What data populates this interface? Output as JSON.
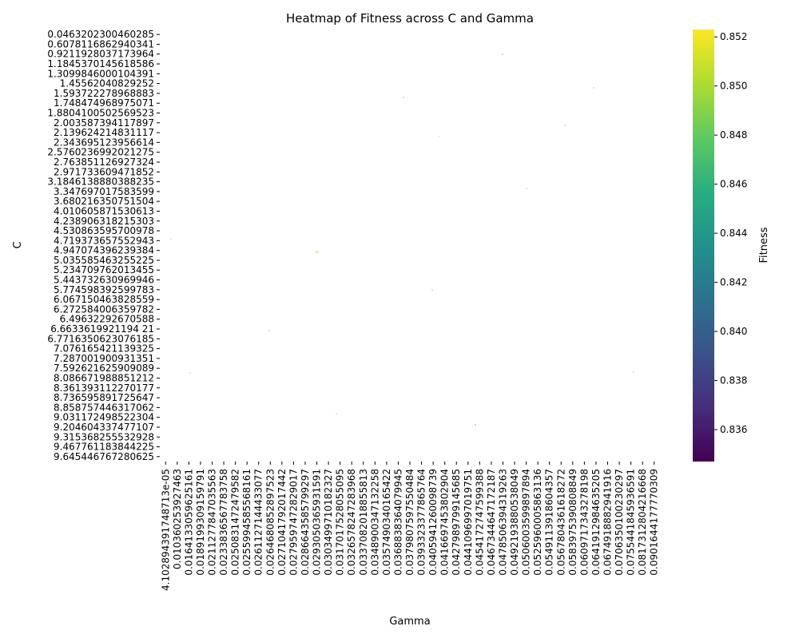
{
  "chart_data": {
    "type": "heatmap",
    "title": "Heatmap of Fitness across C and Gamma",
    "xlabel": "Gamma",
    "ylabel": "C",
    "colorbar": {
      "label": "Fitness",
      "colormap": "viridis",
      "range": [
        0.8347,
        0.8523
      ],
      "ticks": [
        "0.836",
        "0.838",
        "0.840",
        "0.842",
        "0.844",
        "0.846",
        "0.848",
        "0.850",
        "0.852"
      ],
      "tick_values": [
        0.836,
        0.838,
        0.84,
        0.842,
        0.844,
        0.846,
        0.848,
        0.85,
        0.852
      ]
    },
    "y_tick_labels": [
      "0.0463202300460285",
      "0.6078116862940341",
      "0.9211928037173964",
      "1.1845370145618586",
      "1.3099846000104391",
      "1.45562040829252",
      "1.593722278968883",
      "1.748474968975071",
      "1.8804100502569523",
      "2.003587394117897",
      "2.139624214831117",
      "2.343695123956614",
      "2.5760236992021275",
      "2.763851126927324",
      "2.971733609471852",
      "3.1846138880388235",
      "3.347697017583599",
      "3.680216350751504",
      "4.010605871530613",
      "4.238906318215303",
      "4.530863595700978",
      "4.719373657552943",
      "4.947074396239384",
      "5.035585463255225",
      "5.234709762013455",
      "5.443732630969946",
      "5.774598392599783",
      "6.067150463828559",
      "6.272584006359782",
      "6.49632292670588",
      "6.6633619921194 21",
      "6.7716350623076185",
      "7.076165421139325",
      "7.287001900931351",
      "7.592621625909089",
      "8.086671988851212",
      "8.361393112270177",
      "8.736595891725647",
      "8.858757446317062",
      "9.031172498522304",
      "9.204604337477107",
      "9.315368255532928",
      "9.467761183844225",
      "9.645446767280625"
    ],
    "x_tick_labels": [
      "4.102894391748713e-05",
      "0.010360253927463",
      "0.0164133059625161",
      "0.0189199309159791",
      "0.0211277847035563",
      "0.0233836567783758",
      "0.0250831472479582",
      "0.0255994585568161",
      "0.0261127144433077",
      "0.0264680852897523",
      "0.0271041792017442",
      "0.0279597472829017",
      "0.0286643585799297",
      "0.0293050365931591",
      "0.0303499710182327",
      "0.0317017528055095",
      "0.0326578247283968",
      "0.0337082018855813",
      "0.0348900347132258",
      "0.0357490340165422",
      "0.0368838364079945",
      "0.0379807597550484",
      "0.0393323377865764",
      "0.0405941260098739",
      "0.0416697453802904",
      "0.0427989799145685",
      "0.0441096997019751",
      "0.0454172747599388",
      "0.0467344647172187",
      "0.0478506394319263",
      "0.0492193880538049",
      "0.0506003599897894",
      "0.0525960005863136",
      "0.0549113918604357",
      "0.0567804361618272",
      "0.0583975390808849",
      "0.0609717343278198",
      "0.0641912984635205",
      "0.0674918882941916",
      "0.0706350100230297",
      "0.0755441845936591",
      "0.0817312804216668",
      "0.0901644177770309"
    ],
    "grid": false,
    "legend": "colorbar-right"
  }
}
